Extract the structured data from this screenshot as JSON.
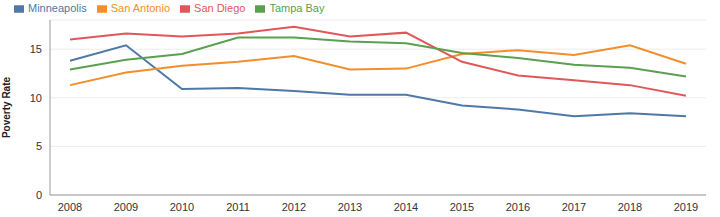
{
  "chart_data": {
    "type": "line",
    "y_label": "Poverty Rate",
    "categories": [
      "2008",
      "2009",
      "2010",
      "2011",
      "2012",
      "2013",
      "2014",
      "2015",
      "2016",
      "2017",
      "2018",
      "2019"
    ],
    "series": [
      {
        "name": "Minneapolis",
        "color": "#4e79a7",
        "values": [
          13.8,
          15.4,
          10.9,
          11.0,
          10.7,
          10.3,
          10.3,
          9.2,
          8.8,
          8.1,
          8.4,
          8.1
        ]
      },
      {
        "name": "San Antonio",
        "color": "#f28e2b",
        "values": [
          11.3,
          12.6,
          13.3,
          13.7,
          14.3,
          12.9,
          13.0,
          14.5,
          14.9,
          14.4,
          15.4,
          13.5
        ]
      },
      {
        "name": "San Diego",
        "color": "#e15759",
        "values": [
          16.0,
          16.6,
          16.3,
          16.6,
          17.3,
          16.3,
          16.7,
          13.7,
          12.3,
          11.8,
          11.3,
          10.2
        ]
      },
      {
        "name": "Tampa Bay",
        "color": "#59a14f",
        "values": [
          12.9,
          13.9,
          14.5,
          16.2,
          16.2,
          15.8,
          15.6,
          14.6,
          14.1,
          13.4,
          13.1,
          12.2
        ]
      }
    ],
    "ylim": [
      0,
      18
    ],
    "yticks": [
      0,
      5,
      10,
      15
    ],
    "grid": true,
    "legend": "top-left"
  }
}
